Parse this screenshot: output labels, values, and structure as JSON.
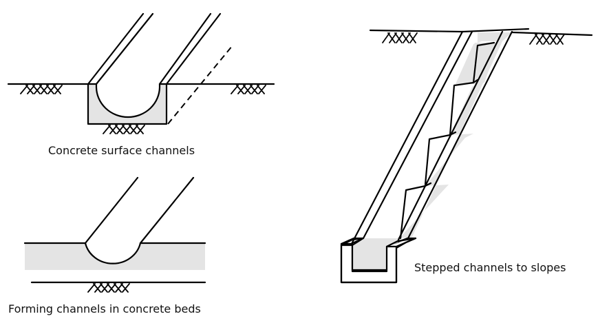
{
  "captions": {
    "surface": "Concrete surface channels",
    "beds": "Forming channels in concrete beds",
    "stepped": "Stepped channels to slopes"
  },
  "colors": {
    "concrete_fill": "#e4e4e4",
    "line": "#000000",
    "background": "#ffffff"
  }
}
